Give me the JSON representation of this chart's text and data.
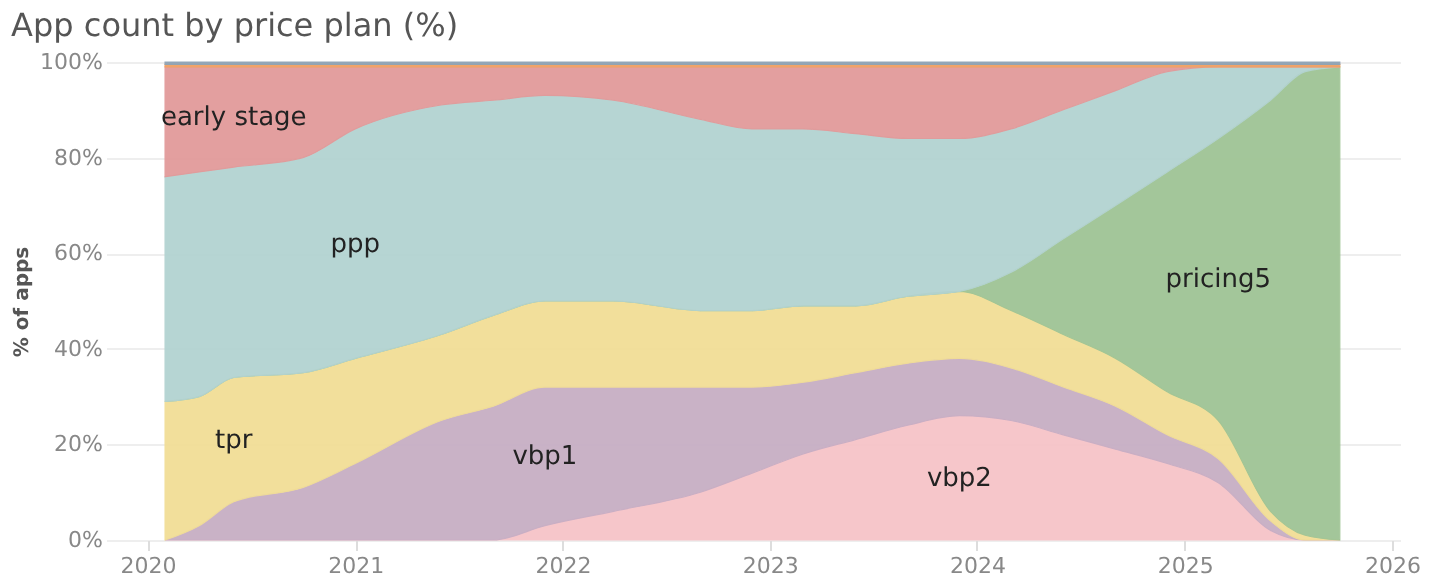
{
  "chart_data": {
    "type": "area",
    "stacked": true,
    "title": "App count by price plan (%)",
    "ylabel": "% of apps",
    "x": [
      "2020-02",
      "2020-04",
      "2020-06",
      "2020-10",
      "2021-01",
      "2021-06",
      "2021-09",
      "2021-12",
      "2022-04",
      "2022-09",
      "2022-12",
      "2023-03",
      "2023-06",
      "2023-09",
      "2023-12",
      "2024-03",
      "2024-06",
      "2024-09",
      "2024-12",
      "2025-03",
      "2025-06",
      "2025-08",
      "2025-10"
    ],
    "series": [
      {
        "name": "vbp2",
        "color": "#f6c3c8",
        "values": [
          0,
          0,
          0,
          0,
          0,
          0,
          0,
          3,
          6,
          10,
          14,
          18,
          21,
          24,
          26,
          25,
          22,
          19,
          16,
          12,
          2,
          0,
          0
        ]
      },
      {
        "name": "vbp1",
        "color": "#c7aec4",
        "values": [
          0,
          3,
          8,
          11,
          16,
          25,
          28,
          29,
          26,
          22,
          18,
          15,
          14,
          13,
          12,
          11,
          10,
          9,
          6,
          5,
          2,
          0,
          0
        ]
      },
      {
        "name": "tpr",
        "color": "#f2de96",
        "values": [
          29,
          27,
          26,
          24,
          22,
          18,
          19,
          18,
          18,
          16,
          16,
          16,
          14,
          14,
          14,
          12,
          11,
          10,
          9,
          8,
          2,
          1,
          0
        ]
      },
      {
        "name": "pricing5",
        "color": "#9fc495",
        "values": [
          0,
          0,
          0,
          0,
          0,
          0,
          0,
          0,
          0,
          0,
          0,
          0,
          0,
          0,
          0,
          8,
          20,
          32,
          46,
          59,
          86,
          97,
          99
        ]
      },
      {
        "name": "ppp",
        "color": "#b3d3d1",
        "values": [
          47,
          47,
          44,
          45,
          48,
          48,
          45,
          43,
          42,
          40,
          38,
          37,
          36,
          33,
          32,
          30,
          27,
          24,
          21,
          15,
          7,
          1,
          0
        ]
      },
      {
        "name": "early stage",
        "color": "#e29a9a",
        "values": [
          23,
          22,
          21,
          19,
          13,
          8,
          7,
          6,
          7,
          11,
          13,
          13,
          14,
          15,
          15,
          13,
          9,
          5,
          1,
          0,
          0,
          0,
          0
        ]
      },
      {
        "color": "#f0a060",
        "values": [
          0.5,
          0.5,
          0.5,
          0.5,
          0.5,
          0.5,
          0.5,
          0.5,
          0.5,
          0.5,
          0.5,
          0.5,
          0.5,
          0.5,
          0.5,
          0.5,
          0.5,
          0.5,
          0.5,
          0.5,
          0.5,
          0.5,
          0.5
        ]
      },
      {
        "color": "#8fa3b5",
        "values": [
          0.5,
          0.5,
          0.5,
          0.5,
          0.5,
          0.5,
          0.5,
          0.5,
          0.5,
          0.5,
          0.5,
          0.5,
          0.5,
          0.5,
          0.5,
          0.5,
          0.5,
          0.5,
          0.5,
          0.5,
          0.5,
          0.5,
          0.5
        ]
      }
    ],
    "xlim": [
      "2019-10-20",
      "2026-01-15"
    ],
    "xticks": [
      "2020",
      "2021",
      "2022",
      "2023",
      "2024",
      "2025",
      "2026"
    ],
    "ylim": [
      0,
      100
    ],
    "yticks": [
      {
        "value": 0,
        "label": "0%"
      },
      {
        "value": 20,
        "label": "20%"
      },
      {
        "value": 40,
        "label": "40%"
      },
      {
        "value": 60,
        "label": "60%"
      },
      {
        "value": 80,
        "label": "80%"
      },
      {
        "value": 100,
        "label": "100%"
      }
    ],
    "grid": "y"
  }
}
